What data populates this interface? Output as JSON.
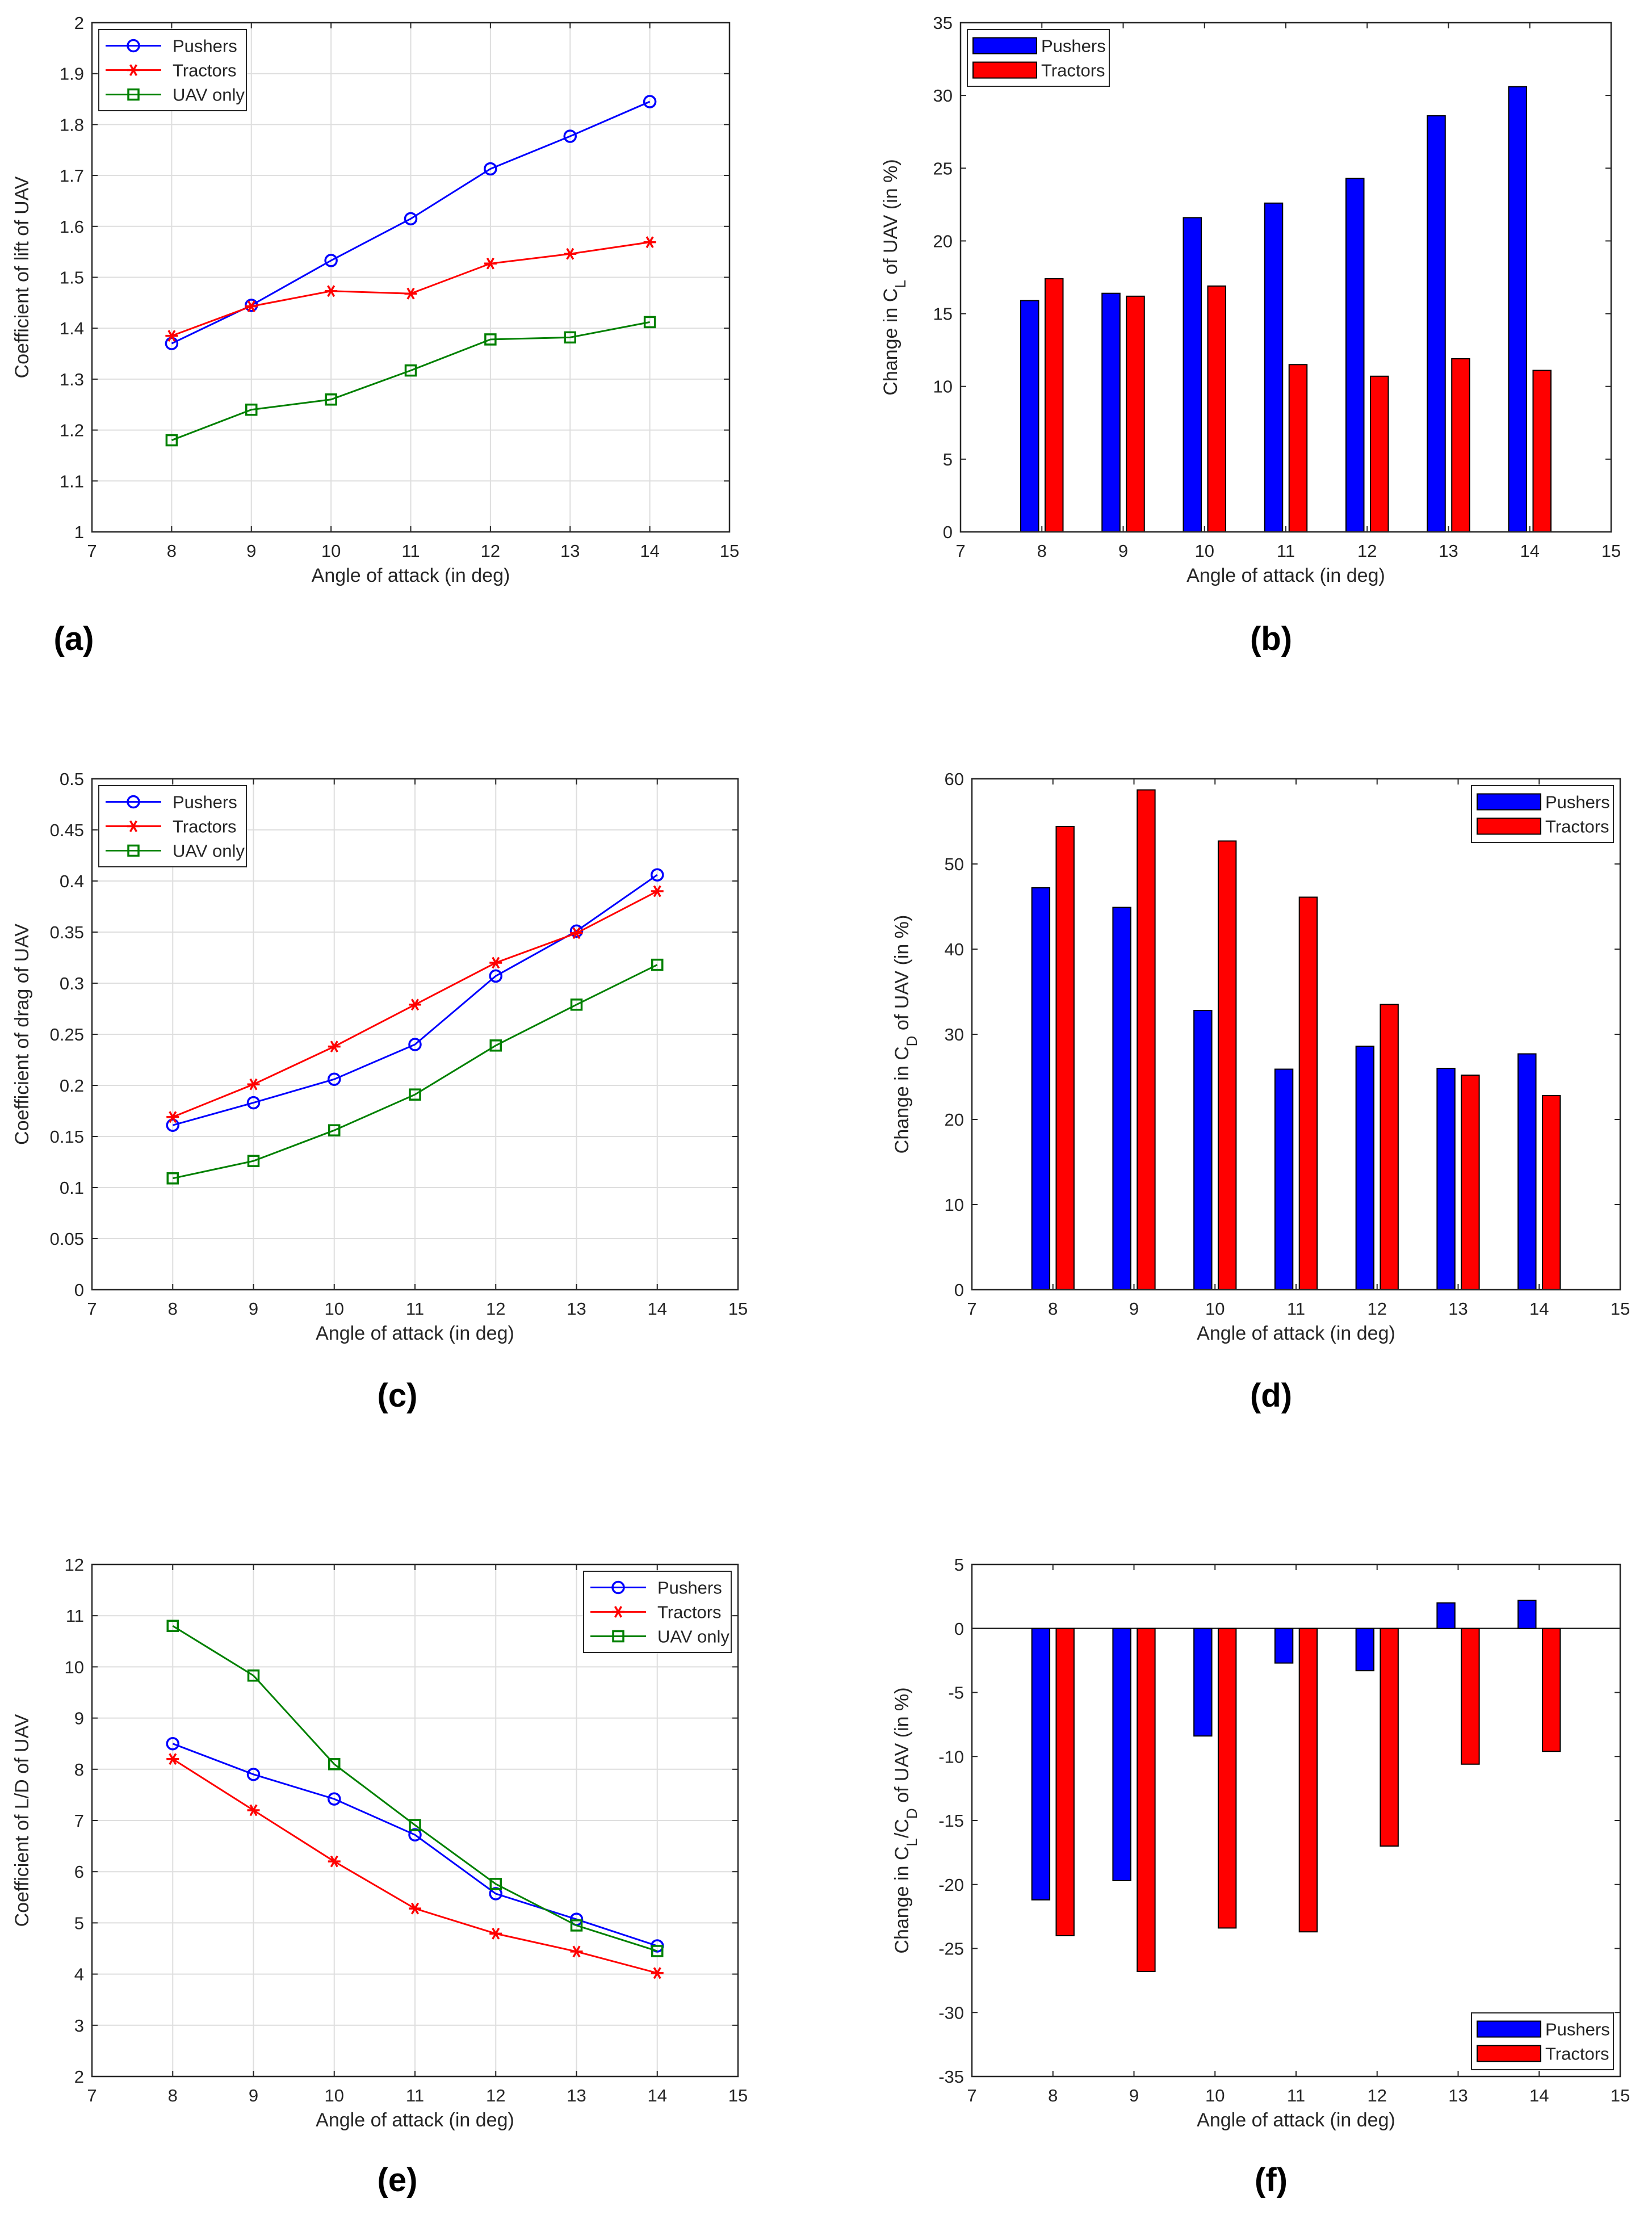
{
  "chart_data": [
    {
      "id": "a",
      "type": "line",
      "panel_label": "(a)",
      "xlabel": "Angle of attack (in deg)",
      "ylabel": "Coefficient of lift of UAV",
      "xlim": [
        7,
        15
      ],
      "ylim": [
        1,
        2
      ],
      "xticks": [
        7,
        8,
        9,
        10,
        11,
        12,
        13,
        14,
        15
      ],
      "yticks": [
        1,
        1.1,
        1.2,
        1.3,
        1.4,
        1.5,
        1.6,
        1.7,
        1.8,
        1.9,
        2
      ],
      "x": [
        8,
        9,
        10,
        11,
        12,
        13,
        14
      ],
      "legend_position": "top-left",
      "grid": true,
      "series": [
        {
          "name": "Pushers",
          "color": "#0000ff",
          "marker": "circle",
          "values": [
            1.37,
            1.445,
            1.533,
            1.615,
            1.713,
            1.777,
            1.845
          ]
        },
        {
          "name": "Tractors",
          "color": "#ff0000",
          "marker": "star",
          "values": [
            1.385,
            1.443,
            1.473,
            1.468,
            1.527,
            1.546,
            1.569
          ]
        },
        {
          "name": "UAV only",
          "color": "#008000",
          "marker": "square",
          "values": [
            1.18,
            1.24,
            1.26,
            1.317,
            1.378,
            1.382,
            1.412
          ]
        }
      ]
    },
    {
      "id": "b",
      "type": "bar",
      "panel_label": "(b)",
      "xlabel": "Angle of attack (in deg)",
      "ylabel_parts": [
        "Change in C",
        "L",
        " of UAV (in %)"
      ],
      "xlim": [
        7,
        15
      ],
      "ylim": [
        0,
        35
      ],
      "xticks": [
        7,
        8,
        9,
        10,
        11,
        12,
        13,
        14,
        15
      ],
      "yticks": [
        0,
        5,
        10,
        15,
        20,
        25,
        30,
        35
      ],
      "x": [
        8,
        9,
        10,
        11,
        12,
        13,
        14
      ],
      "legend_position": "top-left",
      "grid": false,
      "zero_line": false,
      "series": [
        {
          "name": "Pushers",
          "color": "#0000ff",
          "values": [
            15.9,
            16.4,
            21.6,
            22.6,
            24.3,
            28.6,
            30.6
          ]
        },
        {
          "name": "Tractors",
          "color": "#ff0000",
          "values": [
            17.4,
            16.2,
            16.9,
            11.5,
            10.7,
            11.9,
            11.1
          ]
        }
      ]
    },
    {
      "id": "c",
      "type": "line",
      "panel_label": "(c)",
      "xlabel": "Angle of attack (in deg)",
      "ylabel": "Coefficient of drag of UAV",
      "xlim": [
        7,
        15
      ],
      "ylim": [
        0,
        0.5
      ],
      "xticks": [
        7,
        8,
        9,
        10,
        11,
        12,
        13,
        14,
        15
      ],
      "yticks": [
        0,
        0.05,
        0.1,
        0.15,
        0.2,
        0.25,
        0.3,
        0.35,
        0.4,
        0.45,
        0.5
      ],
      "x": [
        8,
        9,
        10,
        11,
        12,
        13,
        14
      ],
      "legend_position": "top-left",
      "grid": true,
      "series": [
        {
          "name": "Pushers",
          "color": "#0000ff",
          "marker": "circle",
          "values": [
            0.161,
            0.183,
            0.206,
            0.24,
            0.307,
            0.351,
            0.406
          ]
        },
        {
          "name": "Tractors",
          "color": "#ff0000",
          "marker": "star",
          "values": [
            0.169,
            0.201,
            0.238,
            0.279,
            0.32,
            0.349,
            0.39
          ]
        },
        {
          "name": "UAV only",
          "color": "#008000",
          "marker": "square",
          "values": [
            0.109,
            0.126,
            0.156,
            0.191,
            0.239,
            0.279,
            0.318
          ]
        }
      ]
    },
    {
      "id": "d",
      "type": "bar",
      "panel_label": "(d)",
      "xlabel": "Angle of attack (in deg)",
      "ylabel_parts": [
        "Change in C",
        "D",
        " of UAV (in %)"
      ],
      "xlim": [
        7,
        15
      ],
      "ylim": [
        0,
        60
      ],
      "xticks": [
        7,
        8,
        9,
        10,
        11,
        12,
        13,
        14,
        15
      ],
      "yticks": [
        0,
        10,
        20,
        30,
        40,
        50,
        60
      ],
      "x": [
        8,
        9,
        10,
        11,
        12,
        13,
        14
      ],
      "legend_position": "top-right",
      "grid": false,
      "zero_line": false,
      "series": [
        {
          "name": "Pushers",
          "color": "#0000ff",
          "values": [
            47.2,
            44.9,
            32.8,
            25.9,
            28.6,
            26.0,
            27.7
          ]
        },
        {
          "name": "Tractors",
          "color": "#ff0000",
          "values": [
            54.4,
            58.7,
            52.7,
            46.1,
            33.5,
            25.2,
            22.8
          ]
        }
      ]
    },
    {
      "id": "e",
      "type": "line",
      "panel_label": "(e)",
      "xlabel": "Angle of attack (in deg)",
      "ylabel": "Coefficient of L/D of UAV",
      "xlim": [
        7,
        15
      ],
      "ylim": [
        2,
        12
      ],
      "xticks": [
        7,
        8,
        9,
        10,
        11,
        12,
        13,
        14,
        15
      ],
      "yticks": [
        2,
        3,
        4,
        5,
        6,
        7,
        8,
        9,
        10,
        11,
        12
      ],
      "x": [
        8,
        9,
        10,
        11,
        12,
        13,
        14
      ],
      "legend_position": "top-right",
      "grid": true,
      "series": [
        {
          "name": "Pushers",
          "color": "#0000ff",
          "marker": "circle",
          "values": [
            8.5,
            7.9,
            7.42,
            6.72,
            5.57,
            5.07,
            4.55
          ]
        },
        {
          "name": "Tractors",
          "color": "#ff0000",
          "marker": "star",
          "values": [
            8.2,
            7.2,
            6.2,
            5.28,
            4.79,
            4.44,
            4.02
          ]
        },
        {
          "name": "UAV only",
          "color": "#008000",
          "marker": "square",
          "values": [
            10.8,
            9.83,
            8.1,
            6.91,
            5.76,
            4.95,
            4.45
          ]
        }
      ]
    },
    {
      "id": "f",
      "type": "bar",
      "panel_label": "(f)",
      "xlabel": "Angle of attack (in deg)",
      "ylabel_parts": [
        "Change in C",
        "L",
        "/C",
        "D",
        " of UAV (in %)"
      ],
      "xlim": [
        7,
        15
      ],
      "ylim": [
        -35,
        5
      ],
      "xticks": [
        7,
        8,
        9,
        10,
        11,
        12,
        13,
        14,
        15
      ],
      "yticks": [
        -35,
        -30,
        -25,
        -20,
        -15,
        -10,
        -5,
        0,
        5
      ],
      "x": [
        8,
        9,
        10,
        11,
        12,
        13,
        14
      ],
      "legend_position": "bottom-right",
      "grid": false,
      "zero_line": true,
      "series": [
        {
          "name": "Pushers",
          "color": "#0000ff",
          "values": [
            -21.2,
            -19.7,
            -8.4,
            -2.7,
            -3.3,
            2.0,
            2.2
          ]
        },
        {
          "name": "Tractors",
          "color": "#ff0000",
          "values": [
            -24.0,
            -26.8,
            -23.4,
            -23.7,
            -17.0,
            -10.6,
            -9.6
          ]
        }
      ]
    }
  ]
}
